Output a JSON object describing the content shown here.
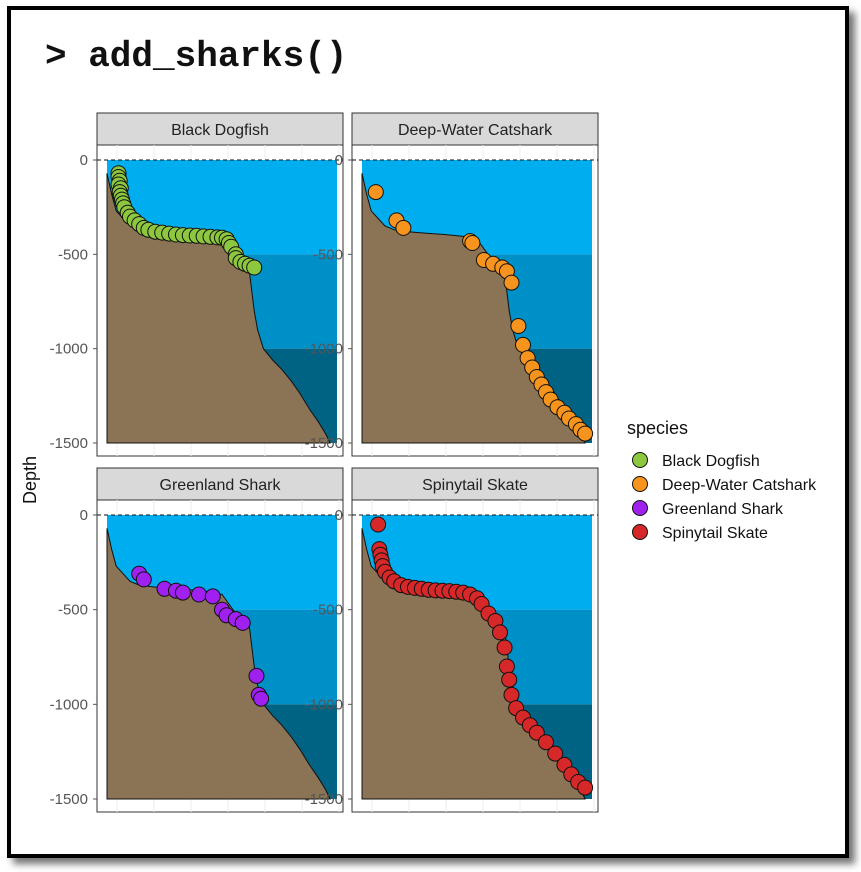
{
  "title": "> add_sharks()",
  "chart_data": {
    "type": "scatter",
    "ylabel": "Depth",
    "xlabel": "",
    "ylim": [
      -1500,
      0
    ],
    "yticks": [
      0,
      -500,
      -1000,
      -1500
    ],
    "tick_labels": [
      "0",
      "-500",
      "-1000",
      "-1500"
    ],
    "depth_zone_boundaries": [
      0,
      -500,
      -1000,
      -1500
    ],
    "zone_colors": [
      "#00AEEF",
      "#0090C8",
      "#006384"
    ],
    "seabed_color": "#8B7355",
    "legend": {
      "title": "species",
      "placement": "right"
    },
    "series": [
      {
        "name": "Black Dogfish",
        "color": "#8DC63F",
        "panel_title": "Black Dogfish",
        "points": [
          [
            0.05,
            -70
          ],
          [
            0.05,
            -90
          ],
          [
            0.055,
            -110
          ],
          [
            0.05,
            -130
          ],
          [
            0.06,
            -150
          ],
          [
            0.055,
            -170
          ],
          [
            0.06,
            -190
          ],
          [
            0.065,
            -210
          ],
          [
            0.07,
            -230
          ],
          [
            0.075,
            -250
          ],
          [
            0.09,
            -280
          ],
          [
            0.1,
            -300
          ],
          [
            0.12,
            -320
          ],
          [
            0.14,
            -340
          ],
          [
            0.16,
            -360
          ],
          [
            0.18,
            -370
          ],
          [
            0.21,
            -380
          ],
          [
            0.24,
            -385
          ],
          [
            0.27,
            -390
          ],
          [
            0.3,
            -395
          ],
          [
            0.33,
            -398
          ],
          [
            0.36,
            -400
          ],
          [
            0.39,
            -402
          ],
          [
            0.42,
            -405
          ],
          [
            0.45,
            -407
          ],
          [
            0.48,
            -410
          ],
          [
            0.5,
            -412
          ],
          [
            0.52,
            -420
          ],
          [
            0.53,
            -440
          ],
          [
            0.54,
            -460
          ],
          [
            0.56,
            -500
          ],
          [
            0.56,
            -520
          ],
          [
            0.58,
            -540
          ],
          [
            0.6,
            -550
          ],
          [
            0.62,
            -560
          ],
          [
            0.64,
            -570
          ]
        ]
      },
      {
        "name": "Deep-Water Catshark",
        "color": "#F7941D",
        "panel_title": "Deep-Water Catshark",
        "points": [
          [
            0.06,
            -170
          ],
          [
            0.15,
            -320
          ],
          [
            0.18,
            -360
          ],
          [
            0.47,
            -430
          ],
          [
            0.48,
            -440
          ],
          [
            0.53,
            -530
          ],
          [
            0.57,
            -550
          ],
          [
            0.61,
            -570
          ],
          [
            0.63,
            -590
          ],
          [
            0.65,
            -650
          ],
          [
            0.68,
            -880
          ],
          [
            0.7,
            -980
          ],
          [
            0.72,
            -1050
          ],
          [
            0.74,
            -1100
          ],
          [
            0.76,
            -1150
          ],
          [
            0.78,
            -1190
          ],
          [
            0.8,
            -1230
          ],
          [
            0.82,
            -1270
          ],
          [
            0.85,
            -1310
          ],
          [
            0.88,
            -1340
          ],
          [
            0.9,
            -1370
          ],
          [
            0.93,
            -1400
          ],
          [
            0.95,
            -1430
          ],
          [
            0.97,
            -1450
          ]
        ]
      },
      {
        "name": "Greenland Shark",
        "color": "#A020F0",
        "panel_title": "Greenland Shark",
        "points": [
          [
            0.14,
            -310
          ],
          [
            0.16,
            -340
          ],
          [
            0.25,
            -390
          ],
          [
            0.3,
            -400
          ],
          [
            0.33,
            -410
          ],
          [
            0.4,
            -420
          ],
          [
            0.46,
            -430
          ],
          [
            0.5,
            -500
          ],
          [
            0.52,
            -530
          ],
          [
            0.56,
            -550
          ],
          [
            0.59,
            -570
          ],
          [
            0.65,
            -850
          ],
          [
            0.66,
            -950
          ],
          [
            0.67,
            -970
          ]
        ]
      },
      {
        "name": "Spinytail Skate",
        "color": "#D62828",
        "panel_title": "Spinytail Skate",
        "points": [
          [
            0.07,
            -50
          ],
          [
            0.075,
            -180
          ],
          [
            0.08,
            -210
          ],
          [
            0.085,
            -240
          ],
          [
            0.09,
            -270
          ],
          [
            0.1,
            -300
          ],
          [
            0.12,
            -330
          ],
          [
            0.14,
            -350
          ],
          [
            0.17,
            -370
          ],
          [
            0.2,
            -380
          ],
          [
            0.23,
            -385
          ],
          [
            0.26,
            -390
          ],
          [
            0.29,
            -395
          ],
          [
            0.32,
            -398
          ],
          [
            0.35,
            -400
          ],
          [
            0.38,
            -402
          ],
          [
            0.41,
            -405
          ],
          [
            0.44,
            -410
          ],
          [
            0.47,
            -420
          ],
          [
            0.5,
            -440
          ],
          [
            0.52,
            -470
          ],
          [
            0.55,
            -520
          ],
          [
            0.58,
            -560
          ],
          [
            0.6,
            -620
          ],
          [
            0.62,
            -700
          ],
          [
            0.63,
            -800
          ],
          [
            0.64,
            -870
          ],
          [
            0.65,
            -950
          ],
          [
            0.67,
            -1020
          ],
          [
            0.7,
            -1070
          ],
          [
            0.73,
            -1110
          ],
          [
            0.76,
            -1150
          ],
          [
            0.8,
            -1200
          ],
          [
            0.84,
            -1260
          ],
          [
            0.88,
            -1320
          ],
          [
            0.91,
            -1370
          ],
          [
            0.94,
            -1410
          ],
          [
            0.97,
            -1440
          ]
        ]
      }
    ]
  }
}
